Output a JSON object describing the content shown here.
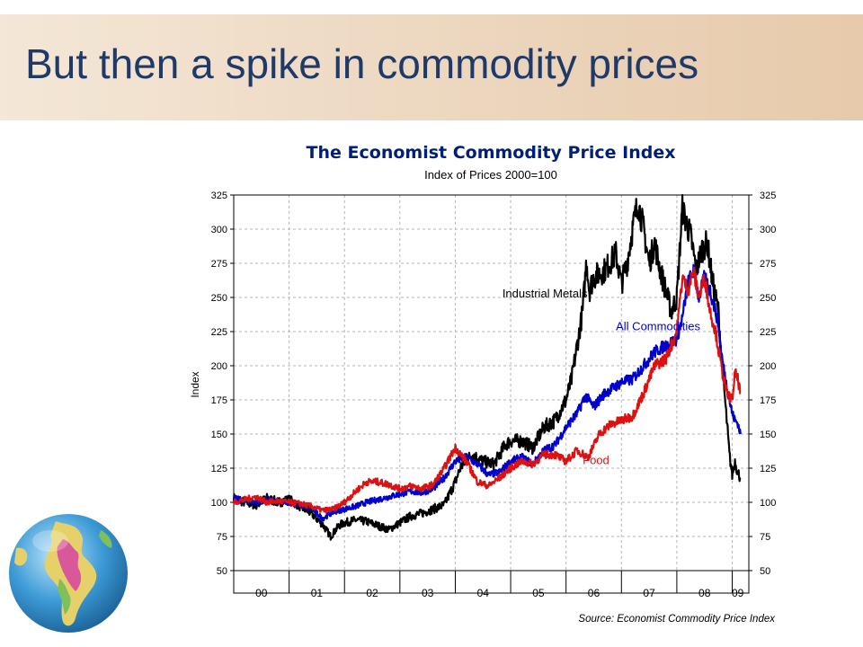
{
  "slide": {
    "title": "But then a spike in commodity prices"
  },
  "chart_data": {
    "type": "line",
    "title": "The Economist Commodity Price Index",
    "subtitle": "Index of Prices 2000=100",
    "ylabel": "Index",
    "xlabel": "",
    "source": "Source: Economist Commodity Price Index",
    "ylim": [
      50,
      325
    ],
    "xlim": [
      2000.0,
      2009.3
    ],
    "y_ticks": [
      50,
      75,
      100,
      125,
      150,
      175,
      200,
      225,
      250,
      275,
      300,
      325
    ],
    "x_tick_labels": [
      "00",
      "01",
      "02",
      "03",
      "04",
      "05",
      "06",
      "07",
      "08",
      "09"
    ],
    "x_tick_positions": [
      2000.5,
      2001.5,
      2002.5,
      2003.5,
      2004.5,
      2005.5,
      2006.5,
      2007.5,
      2008.5,
      2009.1
    ],
    "grid": true,
    "colors": {
      "industrial_metals": "#000000",
      "all_commodities": "#0000cc",
      "food": "#dd1111"
    },
    "series": [
      {
        "name": "Industrial Metals",
        "key": "industrial_metals",
        "x": [
          2000.0,
          2000.2,
          2000.4,
          2000.6,
          2000.8,
          2001.0,
          2001.2,
          2001.4,
          2001.6,
          2001.75,
          2001.9,
          2002.0,
          2002.2,
          2002.4,
          2002.6,
          2002.8,
          2003.0,
          2003.2,
          2003.4,
          2003.6,
          2003.8,
          2004.0,
          2004.1,
          2004.3,
          2004.5,
          2004.7,
          2004.9,
          2005.0,
          2005.2,
          2005.4,
          2005.6,
          2005.8,
          2006.0,
          2006.1,
          2006.2,
          2006.3,
          2006.37,
          2006.42,
          2006.5,
          2006.7,
          2006.9,
          2007.0,
          2007.1,
          2007.2,
          2007.3,
          2007.4,
          2007.5,
          2007.6,
          2007.7,
          2007.8,
          2007.9,
          2008.0,
          2008.1,
          2008.17,
          2008.25,
          2008.35,
          2008.45,
          2008.55,
          2008.65,
          2008.75,
          2008.8,
          2008.85,
          2008.9,
          2008.95,
          2009.0,
          2009.05,
          2009.1,
          2009.15
        ],
        "values": [
          103,
          100,
          98,
          103,
          100,
          102,
          97,
          92,
          84,
          75,
          83,
          85,
          87,
          86,
          83,
          80,
          85,
          90,
          92,
          95,
          98,
          115,
          126,
          135,
          130,
          128,
          142,
          145,
          145,
          140,
          155,
          160,
          175,
          190,
          215,
          240,
          278,
          255,
          265,
          270,
          282,
          260,
          275,
          300,
          320,
          300,
          275,
          290,
          270,
          255,
          240,
          250,
          315,
          305,
          295,
          270,
          285,
          290,
          260,
          240,
          210,
          185,
          160,
          135,
          120,
          130,
          122,
          118
        ]
      },
      {
        "name": "All Commodities",
        "key": "all_commodities",
        "x": [
          2000.0,
          2000.2,
          2000.4,
          2000.6,
          2000.8,
          2001.0,
          2001.2,
          2001.4,
          2001.6,
          2001.8,
          2002.0,
          2002.2,
          2002.4,
          2002.6,
          2002.8,
          2003.0,
          2003.2,
          2003.4,
          2003.6,
          2003.8,
          2004.0,
          2004.2,
          2004.4,
          2004.6,
          2004.8,
          2005.0,
          2005.2,
          2005.4,
          2005.6,
          2005.8,
          2006.0,
          2006.2,
          2006.35,
          2006.5,
          2006.7,
          2006.9,
          2007.0,
          2007.2,
          2007.4,
          2007.6,
          2007.8,
          2007.95,
          2008.0,
          2008.1,
          2008.2,
          2008.3,
          2008.4,
          2008.5,
          2008.6,
          2008.7,
          2008.75,
          2008.8,
          2008.9,
          2009.0,
          2009.05,
          2009.1,
          2009.15
        ],
        "values": [
          103,
          101,
          100,
          102,
          100,
          100,
          98,
          96,
          88,
          93,
          95,
          97,
          100,
          102,
          104,
          106,
          108,
          107,
          110,
          118,
          130,
          133,
          128,
          120,
          122,
          130,
          133,
          128,
          138,
          142,
          155,
          165,
          178,
          170,
          180,
          185,
          188,
          190,
          200,
          210,
          215,
          218,
          220,
          235,
          260,
          270,
          250,
          265,
          255,
          240,
          230,
          210,
          185,
          165,
          160,
          158,
          150
        ]
      },
      {
        "name": "Food",
        "key": "food",
        "x": [
          2000.0,
          2000.2,
          2000.4,
          2000.6,
          2000.8,
          2001.0,
          2001.2,
          2001.4,
          2001.6,
          2001.8,
          2002.0,
          2002.2,
          2002.4,
          2002.6,
          2002.8,
          2003.0,
          2003.2,
          2003.4,
          2003.6,
          2003.8,
          2004.0,
          2004.2,
          2004.4,
          2004.6,
          2004.8,
          2005.0,
          2005.2,
          2005.4,
          2005.6,
          2005.8,
          2006.0,
          2006.2,
          2006.4,
          2006.6,
          2006.8,
          2007.0,
          2007.2,
          2007.4,
          2007.6,
          2007.8,
          2007.9,
          2008.0,
          2008.1,
          2008.2,
          2008.3,
          2008.4,
          2008.5,
          2008.6,
          2008.7,
          2008.8,
          2008.9,
          2009.0,
          2009.05,
          2009.1,
          2009.15
        ],
        "values": [
          100,
          102,
          104,
          100,
          101,
          100,
          99,
          97,
          94,
          95,
          100,
          108,
          115,
          115,
          113,
          110,
          112,
          110,
          113,
          125,
          140,
          130,
          115,
          112,
          118,
          125,
          130,
          128,
          135,
          135,
          130,
          138,
          133,
          150,
          157,
          160,
          163,
          180,
          200,
          205,
          215,
          225,
          265,
          255,
          270,
          250,
          265,
          240,
          225,
          200,
          180,
          175,
          195,
          190,
          180
        ]
      }
    ],
    "annotations": [
      {
        "text": "Industrial Metals",
        "series": "industrial_metals",
        "x": 2004.85,
        "y": 250
      },
      {
        "text": "All Commodities",
        "series": "all_commodities",
        "x": 2006.9,
        "y": 226
      },
      {
        "text": "Food",
        "series": "food",
        "x": 2006.3,
        "y": 128
      }
    ]
  }
}
